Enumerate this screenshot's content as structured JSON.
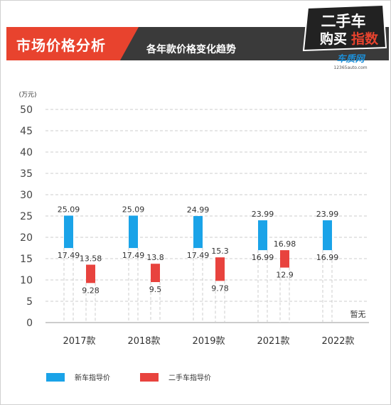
{
  "header": {
    "tag": "市场价格分析",
    "subtitle": "各年款价格变化趋势"
  },
  "logo": {
    "line1": "二手车",
    "line2_a": "购买",
    "line2_b": "指数",
    "brand": "车质网",
    "site": "12365auto.com"
  },
  "colors": {
    "new_price": "#1aa3e8",
    "used_price": "#e8433e",
    "accent": "#e8432e",
    "header_band": "#3a3a3a"
  },
  "chart_data": {
    "type": "bar",
    "ylabel": "(万元)",
    "ylim": [
      0,
      50
    ],
    "yticks": [
      0,
      5,
      10,
      15,
      20,
      25,
      30,
      35,
      40,
      45,
      50
    ],
    "grid": true,
    "categories": [
      "2017款",
      "2018款",
      "2019款",
      "2021款",
      "2022款"
    ],
    "series": [
      {
        "name": "新车指导价",
        "low": [
          17.49,
          17.49,
          17.49,
          16.99,
          16.99
        ],
        "high": [
          25.09,
          25.09,
          24.99,
          23.99,
          23.99
        ]
      },
      {
        "name": "二手车指导价",
        "low": [
          9.28,
          9.5,
          9.78,
          12.9,
          null
        ],
        "high": [
          13.58,
          13.8,
          15.3,
          16.98,
          null
        ]
      }
    ],
    "annotations": [
      "",
      "",
      "",
      "",
      "暂无"
    ],
    "legend_position": "bottom"
  }
}
